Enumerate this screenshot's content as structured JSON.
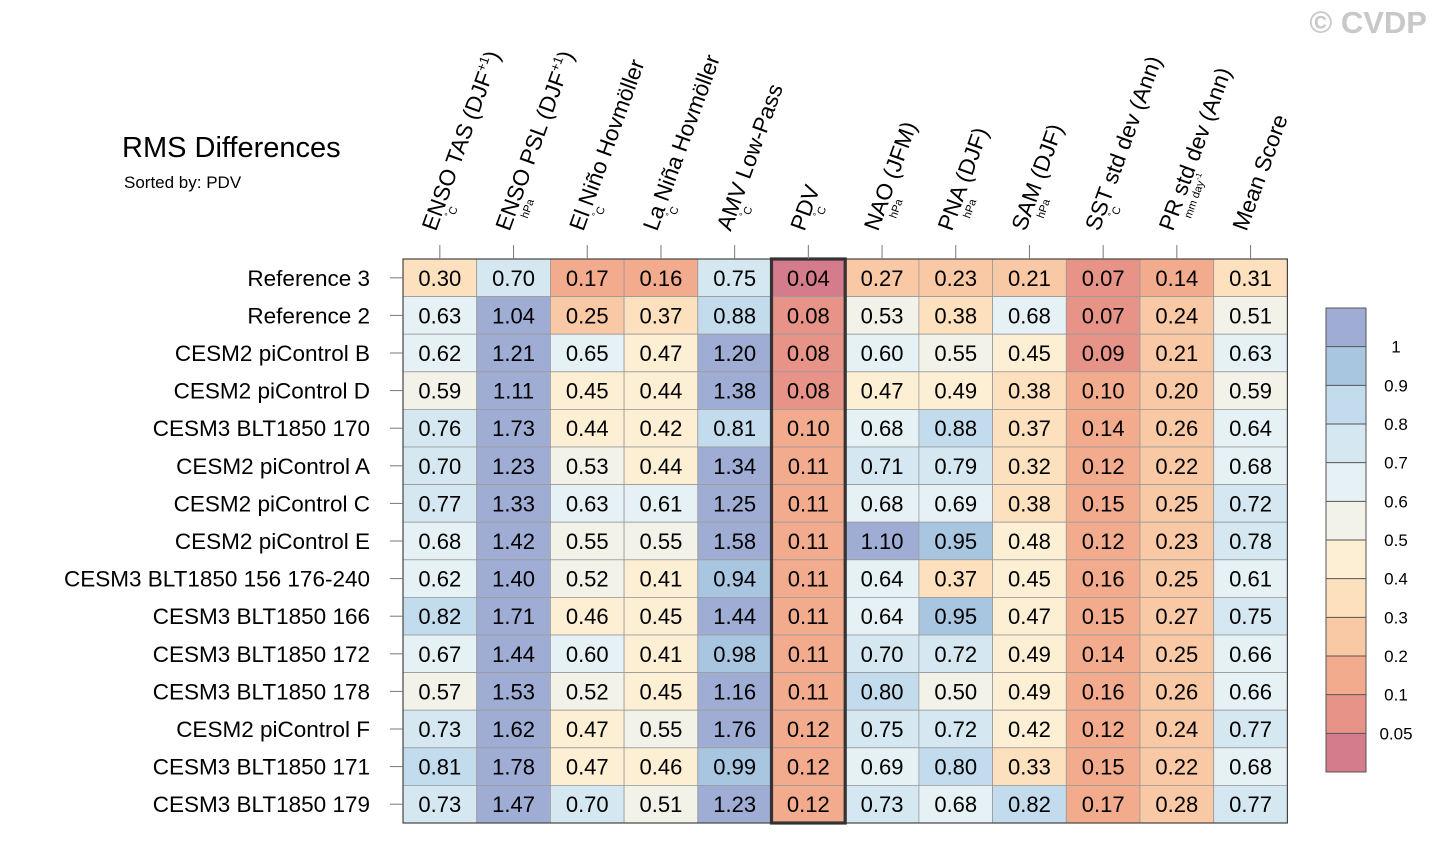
{
  "watermark": "© CVDP",
  "chart_data": {
    "type": "heatmap",
    "title": "RMS Differences",
    "subtitle": "Sorted by: PDV",
    "columns": [
      {
        "name": "ENSO TAS (DJF+1)",
        "base": "ENSO TAS (DJF",
        "sup": "+1",
        "tail": ")",
        "unit": "°C"
      },
      {
        "name": "ENSO PSL (DJF+1)",
        "base": "ENSO PSL (DJF",
        "sup": "+1",
        "tail": ")",
        "unit": "hPa"
      },
      {
        "name": "El Niño Hovmöller",
        "base": "El Niño Hovmöller",
        "sup": "",
        "tail": "",
        "unit": "°C"
      },
      {
        "name": "La Niña Hovmöller",
        "base": "La Niña Hovmöller",
        "sup": "",
        "tail": "",
        "unit": "°C"
      },
      {
        "name": "AMV Low-Pass",
        "base": "AMV Low-Pass",
        "sup": "",
        "tail": "",
        "unit": "°C"
      },
      {
        "name": "PDV",
        "base": "PDV",
        "sup": "",
        "tail": "",
        "unit": "°C"
      },
      {
        "name": "NAO (JFM)",
        "base": "NAO (JFM)",
        "sup": "",
        "tail": "",
        "unit": "hPa"
      },
      {
        "name": "PNA (DJF)",
        "base": "PNA (DJF)",
        "sup": "",
        "tail": "",
        "unit": "hPa"
      },
      {
        "name": "SAM (DJF)",
        "base": "SAM (DJF)",
        "sup": "",
        "tail": "",
        "unit": "hPa"
      },
      {
        "name": "SST std dev (Ann)",
        "base": "SST std dev (Ann)",
        "sup": "",
        "tail": "",
        "unit": "°C"
      },
      {
        "name": "PR std dev (Ann)",
        "base": "PR std dev (Ann)",
        "sup": "",
        "tail": "",
        "unit": "mm day-1"
      },
      {
        "name": "Mean Score",
        "base": "Mean Score",
        "sup": "",
        "tail": "",
        "unit": ""
      }
    ],
    "rows": [
      "Reference 3",
      "Reference 2",
      "CESM2 piControl B",
      "CESM2 piControl D",
      "CESM3 BLT1850 170",
      "CESM2 piControl A",
      "CESM2 piControl C",
      "CESM2 piControl E",
      "CESM3 BLT1850 156 176-240",
      "CESM3 BLT1850 166",
      "CESM3 BLT1850 172",
      "CESM3 BLT1850 178",
      "CESM2 piControl F",
      "CESM3 BLT1850 171",
      "CESM3 BLT1850 179"
    ],
    "values": [
      [
        "0.30",
        "0.70",
        "0.17",
        "0.16",
        "0.75",
        "0.04",
        "0.27",
        "0.23",
        "0.21",
        "0.07",
        "0.14",
        "0.31"
      ],
      [
        "0.63",
        "1.04",
        "0.25",
        "0.37",
        "0.88",
        "0.08",
        "0.53",
        "0.38",
        "0.68",
        "0.07",
        "0.24",
        "0.51"
      ],
      [
        "0.62",
        "1.21",
        "0.65",
        "0.47",
        "1.20",
        "0.08",
        "0.60",
        "0.55",
        "0.45",
        "0.09",
        "0.21",
        "0.63"
      ],
      [
        "0.59",
        "1.11",
        "0.45",
        "0.44",
        "1.38",
        "0.08",
        "0.47",
        "0.49",
        "0.38",
        "0.10",
        "0.20",
        "0.59"
      ],
      [
        "0.76",
        "1.73",
        "0.44",
        "0.42",
        "0.81",
        "0.10",
        "0.68",
        "0.88",
        "0.37",
        "0.14",
        "0.26",
        "0.64"
      ],
      [
        "0.70",
        "1.23",
        "0.53",
        "0.44",
        "1.34",
        "0.11",
        "0.71",
        "0.79",
        "0.32",
        "0.12",
        "0.22",
        "0.68"
      ],
      [
        "0.77",
        "1.33",
        "0.63",
        "0.61",
        "1.25",
        "0.11",
        "0.68",
        "0.69",
        "0.38",
        "0.15",
        "0.25",
        "0.72"
      ],
      [
        "0.68",
        "1.42",
        "0.55",
        "0.55",
        "1.58",
        "0.11",
        "1.10",
        "0.95",
        "0.48",
        "0.12",
        "0.23",
        "0.78"
      ],
      [
        "0.62",
        "1.40",
        "0.52",
        "0.41",
        "0.94",
        "0.11",
        "0.64",
        "0.37",
        "0.45",
        "0.16",
        "0.25",
        "0.61"
      ],
      [
        "0.82",
        "1.71",
        "0.46",
        "0.45",
        "1.44",
        "0.11",
        "0.64",
        "0.95",
        "0.47",
        "0.15",
        "0.27",
        "0.75"
      ],
      [
        "0.67",
        "1.44",
        "0.60",
        "0.41",
        "0.98",
        "0.11",
        "0.70",
        "0.72",
        "0.49",
        "0.14",
        "0.25",
        "0.66"
      ],
      [
        "0.57",
        "1.53",
        "0.52",
        "0.45",
        "1.16",
        "0.11",
        "0.80",
        "0.50",
        "0.49",
        "0.16",
        "0.26",
        "0.66"
      ],
      [
        "0.73",
        "1.62",
        "0.47",
        "0.55",
        "1.76",
        "0.12",
        "0.75",
        "0.72",
        "0.42",
        "0.12",
        "0.24",
        "0.77"
      ],
      [
        "0.81",
        "1.78",
        "0.47",
        "0.46",
        "0.99",
        "0.12",
        "0.69",
        "0.80",
        "0.33",
        "0.15",
        "0.22",
        "0.68"
      ],
      [
        "0.73",
        "1.47",
        "0.70",
        "0.51",
        "1.23",
        "0.12",
        "0.73",
        "0.68",
        "0.82",
        "0.17",
        "0.28",
        "0.77"
      ]
    ],
    "sorted_by_column": "PDV",
    "colorbar": {
      "levels": [
        "1",
        "0.9",
        "0.8",
        "0.7",
        "0.6",
        "0.5",
        "0.4",
        "0.3",
        "0.2",
        "0.1",
        "0.05"
      ],
      "colors": [
        "#9fadd5",
        "#a9c6e1",
        "#c3dced",
        "#d5e8f1",
        "#e5f1f4",
        "#f2f2e9",
        "#fcefd4",
        "#fde0bd",
        "#f9c8a5",
        "#f3ab8e",
        "#e89387",
        "#d57c8c"
      ]
    },
    "cell_colors": {
      "thresholds": [
        0.05,
        0.1,
        0.2,
        0.3,
        0.4,
        0.5,
        0.6,
        0.7,
        0.8,
        0.9,
        1.0
      ],
      "colors": [
        "#d57c8c",
        "#e89387",
        "#f3ab8e",
        "#f9c8a5",
        "#fde0bd",
        "#fcefd4",
        "#f2f2e9",
        "#e5f1f4",
        "#d5e8f1",
        "#c3dced",
        "#a9c6e1",
        "#9fadd5"
      ]
    }
  }
}
